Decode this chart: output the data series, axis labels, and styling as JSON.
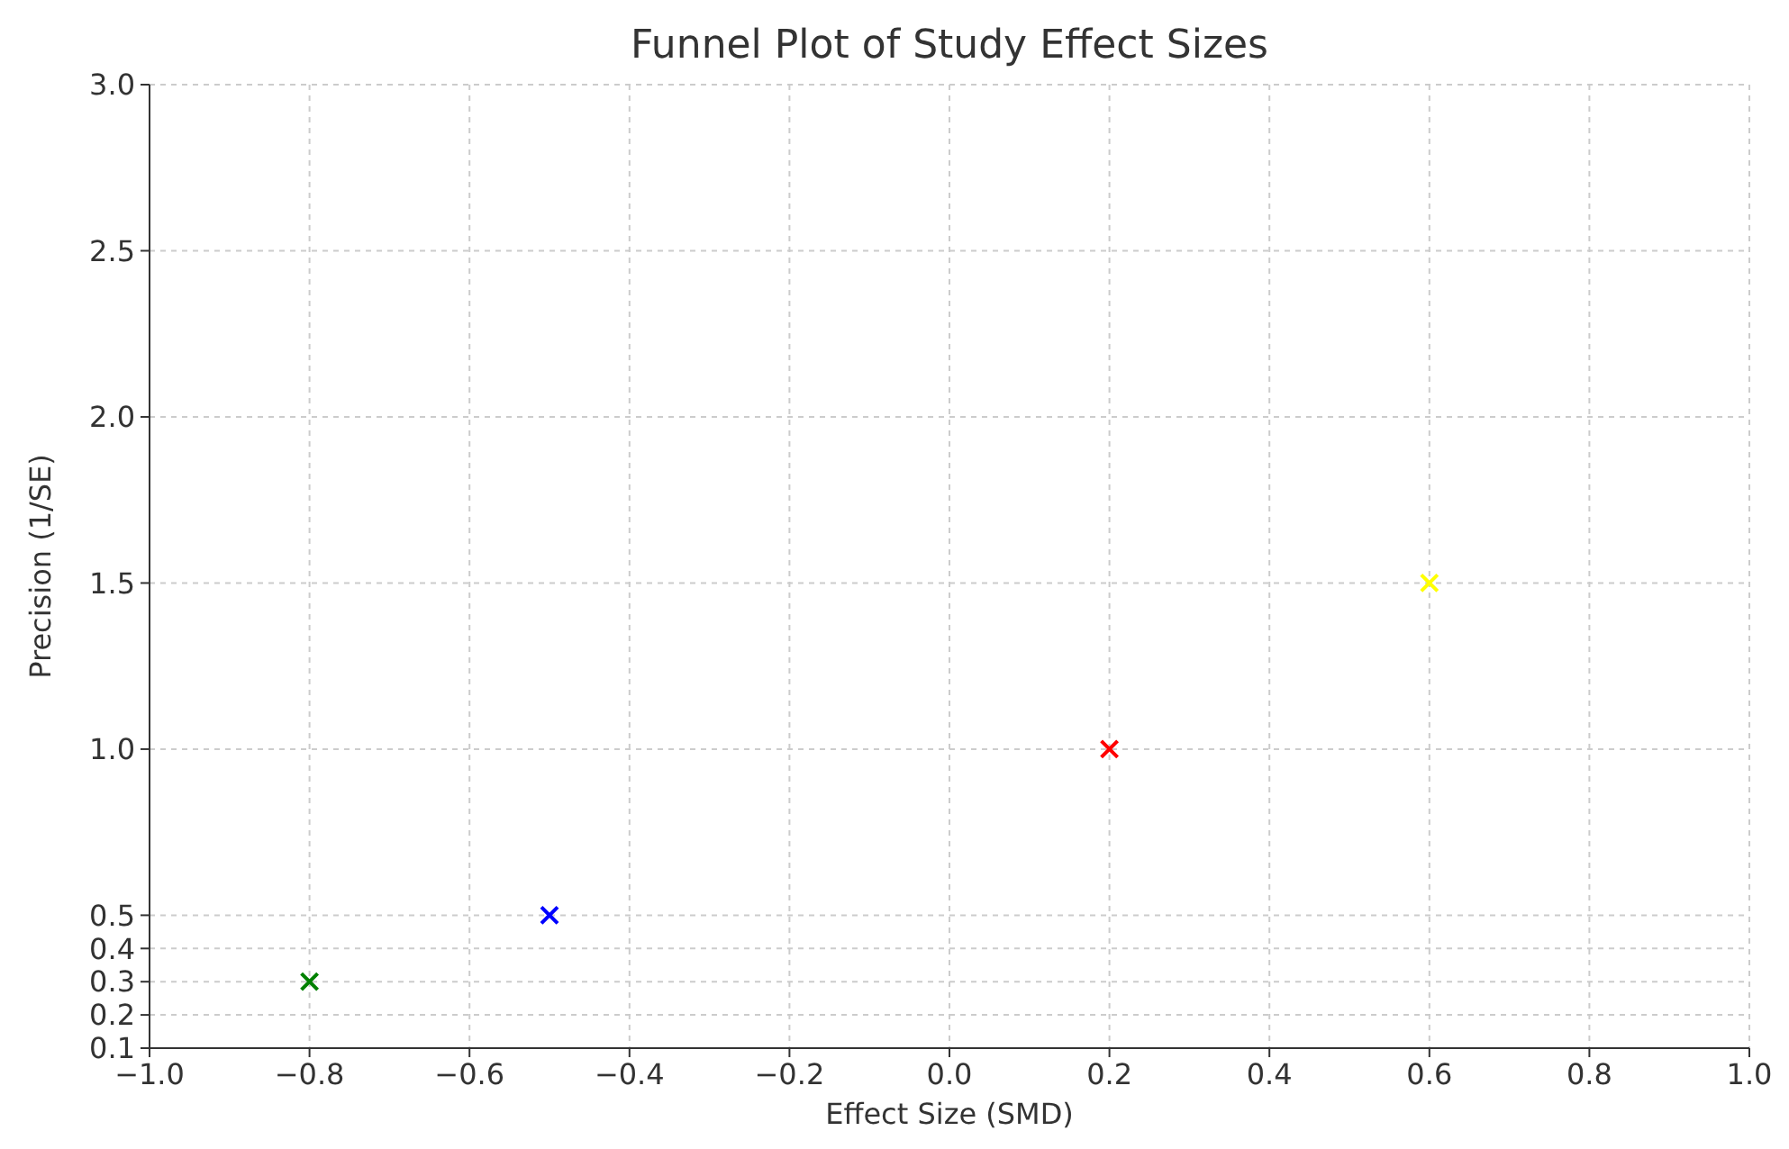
{
  "chart_data": {
    "type": "scatter",
    "title": "Funnel Plot of Study Effect Sizes",
    "xlabel": "Effect Size (SMD)",
    "ylabel": "Precision (1/SE)",
    "x": [
      -0.8,
      -0.5,
      0.2,
      0.6
    ],
    "values": [
      0.3,
      0.5,
      1.0,
      1.5
    ],
    "colors": [
      "#008000",
      "#0000ff",
      "#ff0000",
      "#ffff00"
    ],
    "marker": "cross",
    "grid": true,
    "xlim": [
      -1,
      1
    ],
    "xticks": [
      {
        "value": -1,
        "label": "−1.0"
      },
      {
        "value": -0.8,
        "label": "−0.8"
      },
      {
        "value": -0.6,
        "label": "−0.6"
      },
      {
        "value": -0.4,
        "label": "−0.4"
      },
      {
        "value": -0.2,
        "label": "−0.2"
      },
      {
        "value": 0,
        "label": "0.0"
      },
      {
        "value": 0.2,
        "label": "0.2"
      },
      {
        "value": 0.4,
        "label": "0.4"
      },
      {
        "value": 0.6,
        "label": "0.6"
      },
      {
        "value": 0.8,
        "label": "0.8"
      },
      {
        "value": 1,
        "label": "1.0"
      }
    ],
    "ylim": [
      0.1,
      3
    ],
    "yticks": [
      0.1,
      0.2,
      0.3,
      0.4,
      0.5,
      {
        "value": 1,
        "label": "1.0"
      },
      1.5,
      {
        "value": 2,
        "label": "2.0"
      },
      2.5,
      {
        "value": 3,
        "label": "3.0"
      }
    ]
  }
}
